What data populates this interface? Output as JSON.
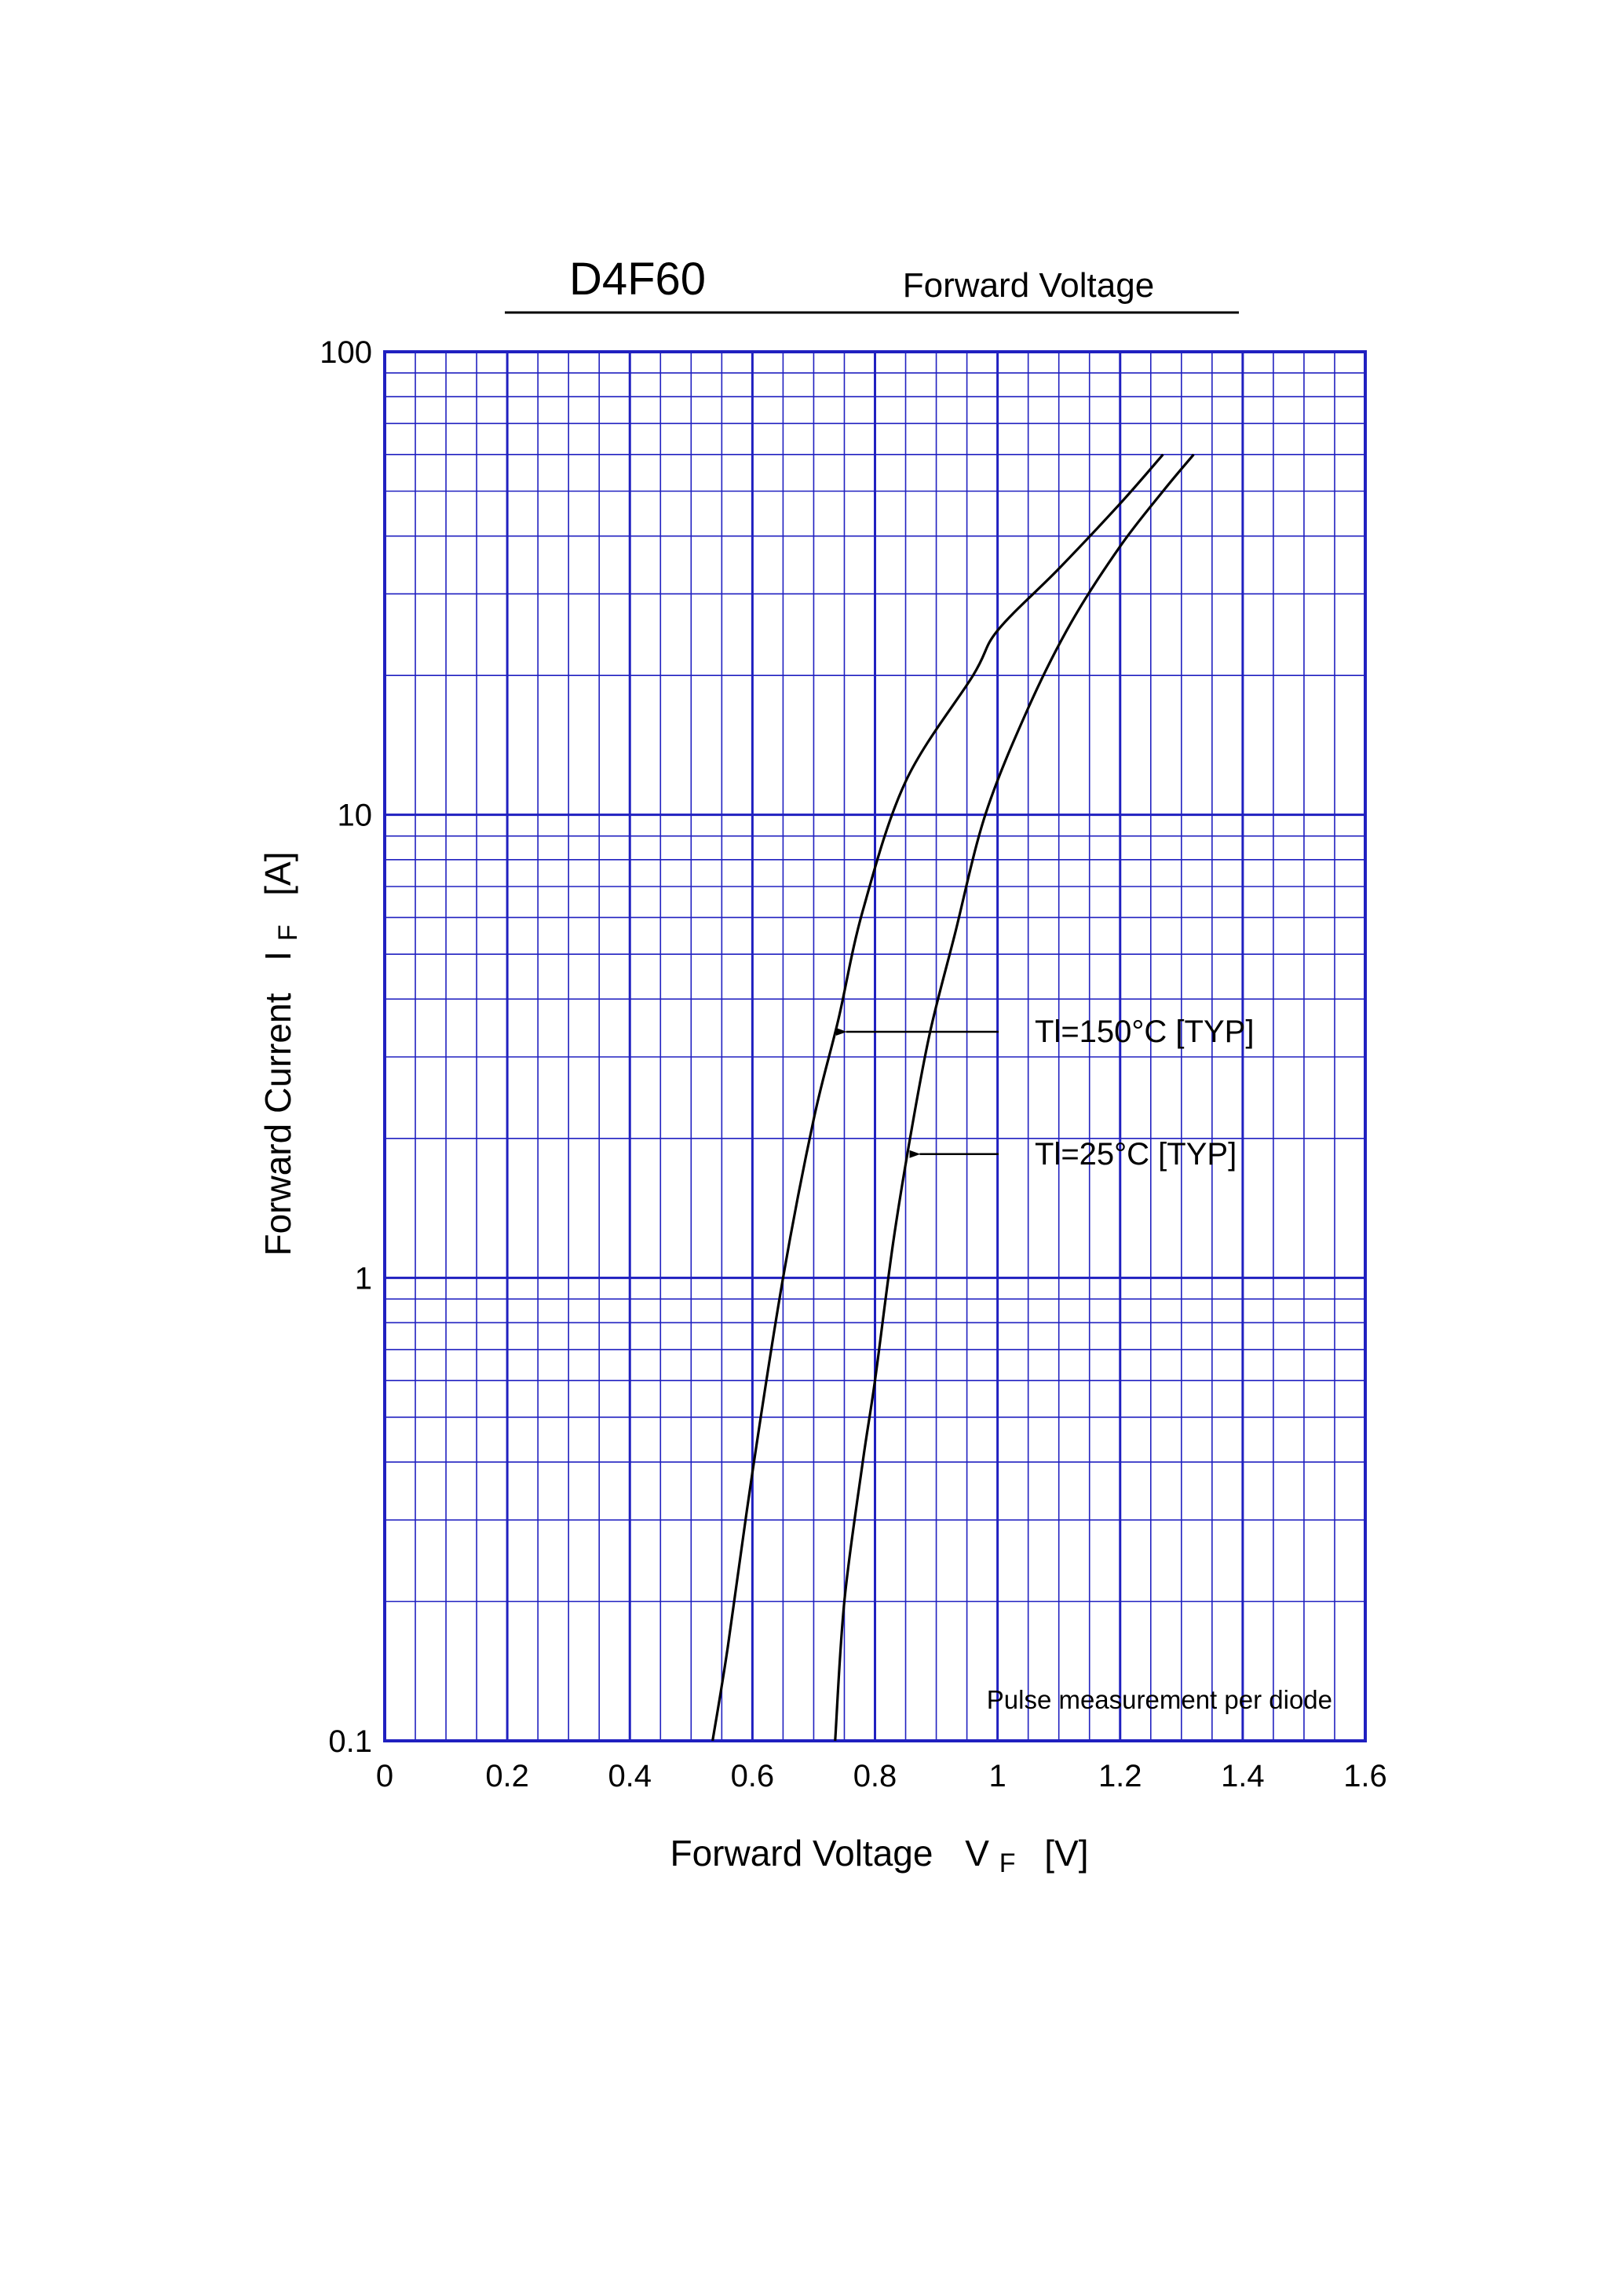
{
  "chart_data": {
    "type": "line",
    "title": "D4F60",
    "subtitle": "Forward Voltage",
    "xlabel": {
      "main": "Forward Voltage",
      "symbol": "V",
      "subscript": "F",
      "unit": "[V]"
    },
    "ylabel": {
      "main": "Forward Current",
      "symbol": "I",
      "subscript": "F",
      "unit": "[A]"
    },
    "xscale": "linear",
    "yscale": "log",
    "xlim": [
      0,
      1.6
    ],
    "ylim": [
      0.1,
      100
    ],
    "x_ticks": [
      "0",
      "0.2",
      "0.4",
      "0.6",
      "0.8",
      "1",
      "1.2",
      "1.4",
      "1.6"
    ],
    "y_ticks": [
      "0.1",
      "1",
      "10",
      "100"
    ],
    "grid": true,
    "grid_color": "#2020c0",
    "line_color": "#000000",
    "series": [
      {
        "name": "Tl=150°C [TYP]",
        "points": [
          [
            0.535,
            0.1
          ],
          [
            0.56,
            0.16
          ],
          [
            0.6,
            0.38
          ],
          [
            0.65,
            1.0
          ],
          [
            0.7,
            2.2
          ],
          [
            0.74,
            3.6
          ],
          [
            0.78,
            6.2
          ],
          [
            0.85,
            11.8
          ],
          [
            0.96,
            20
          ],
          [
            1.0,
            25
          ],
          [
            1.1,
            34
          ],
          [
            1.2,
            47
          ],
          [
            1.27,
            60
          ]
        ]
      },
      {
        "name": "Tl=25°C [TYP]",
        "points": [
          [
            0.735,
            0.1
          ],
          [
            0.75,
            0.2
          ],
          [
            0.78,
            0.4
          ],
          [
            0.8,
            0.6
          ],
          [
            0.83,
            1.2
          ],
          [
            0.86,
            2.1
          ],
          [
            0.89,
            3.4
          ],
          [
            0.93,
            5.5
          ],
          [
            0.98,
            10
          ],
          [
            1.05,
            17
          ],
          [
            1.12,
            26
          ],
          [
            1.2,
            38
          ],
          [
            1.27,
            50
          ],
          [
            1.32,
            60
          ]
        ]
      }
    ],
    "annotations": [
      {
        "text": "Tl=150°C [TYP]",
        "series": 0,
        "arrow_to": [
          0.735,
          3.4
        ]
      },
      {
        "text": "Tl=25°C [TYP]",
        "series": 1,
        "arrow_to": [
          0.855,
          1.85
        ]
      }
    ],
    "note": "Pulse measurement per diode"
  }
}
